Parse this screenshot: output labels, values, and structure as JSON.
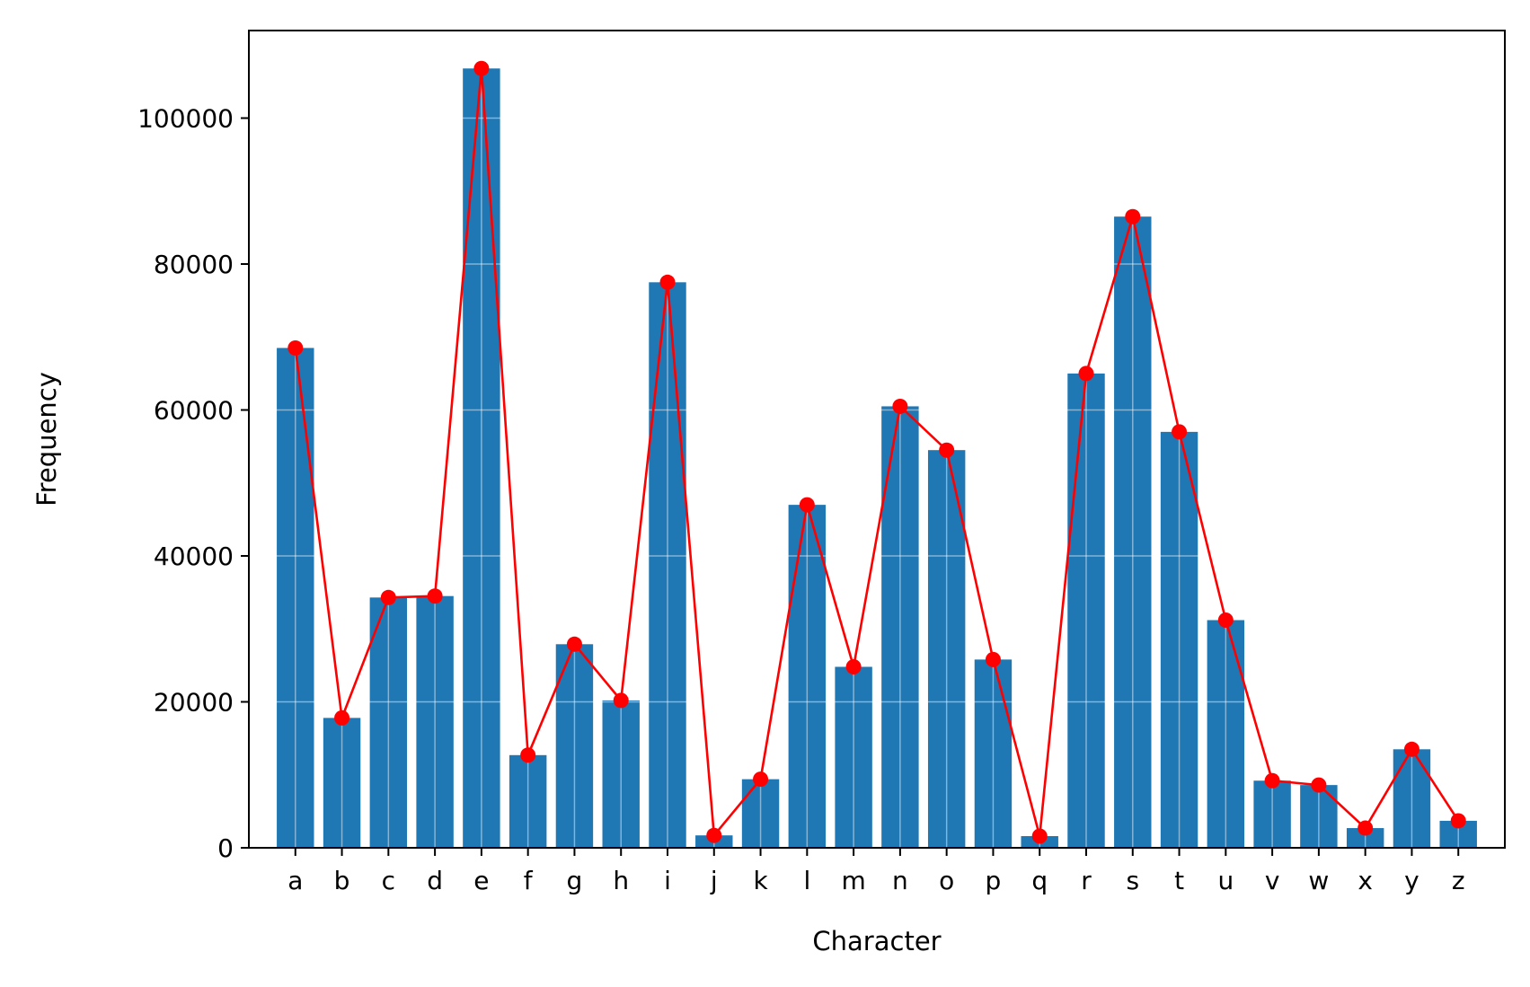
{
  "chart_data": {
    "type": "bar",
    "title": "",
    "xlabel": "Character",
    "ylabel": "Frequency",
    "categories": [
      "a",
      "b",
      "c",
      "d",
      "e",
      "f",
      "g",
      "h",
      "i",
      "j",
      "k",
      "l",
      "m",
      "n",
      "o",
      "p",
      "q",
      "r",
      "s",
      "t",
      "u",
      "v",
      "w",
      "x",
      "y",
      "z"
    ],
    "series": [
      {
        "type": "bar",
        "color": "#1f77b4",
        "values": [
          68500,
          17800,
          34300,
          34500,
          106800,
          12700,
          27900,
          20200,
          77500,
          1700,
          9400,
          47000,
          24800,
          60500,
          54500,
          25800,
          1600,
          65000,
          86500,
          57000,
          31200,
          9200,
          8600,
          2700,
          13500,
          3700
        ]
      },
      {
        "type": "line",
        "color": "#ff0000",
        "marker": "circle",
        "values": [
          68500,
          17800,
          34300,
          34500,
          106800,
          12700,
          27900,
          20200,
          77500,
          1700,
          9400,
          47000,
          24800,
          60500,
          54500,
          25800,
          1600,
          65000,
          86500,
          57000,
          31200,
          9200,
          8600,
          2700,
          13500,
          3700
        ]
      }
    ],
    "ylim": [
      0,
      112000
    ],
    "yticks": [
      "0",
      "20000",
      "40000",
      "60000",
      "80000",
      "100000"
    ],
    "grid": true,
    "legend": "none"
  }
}
